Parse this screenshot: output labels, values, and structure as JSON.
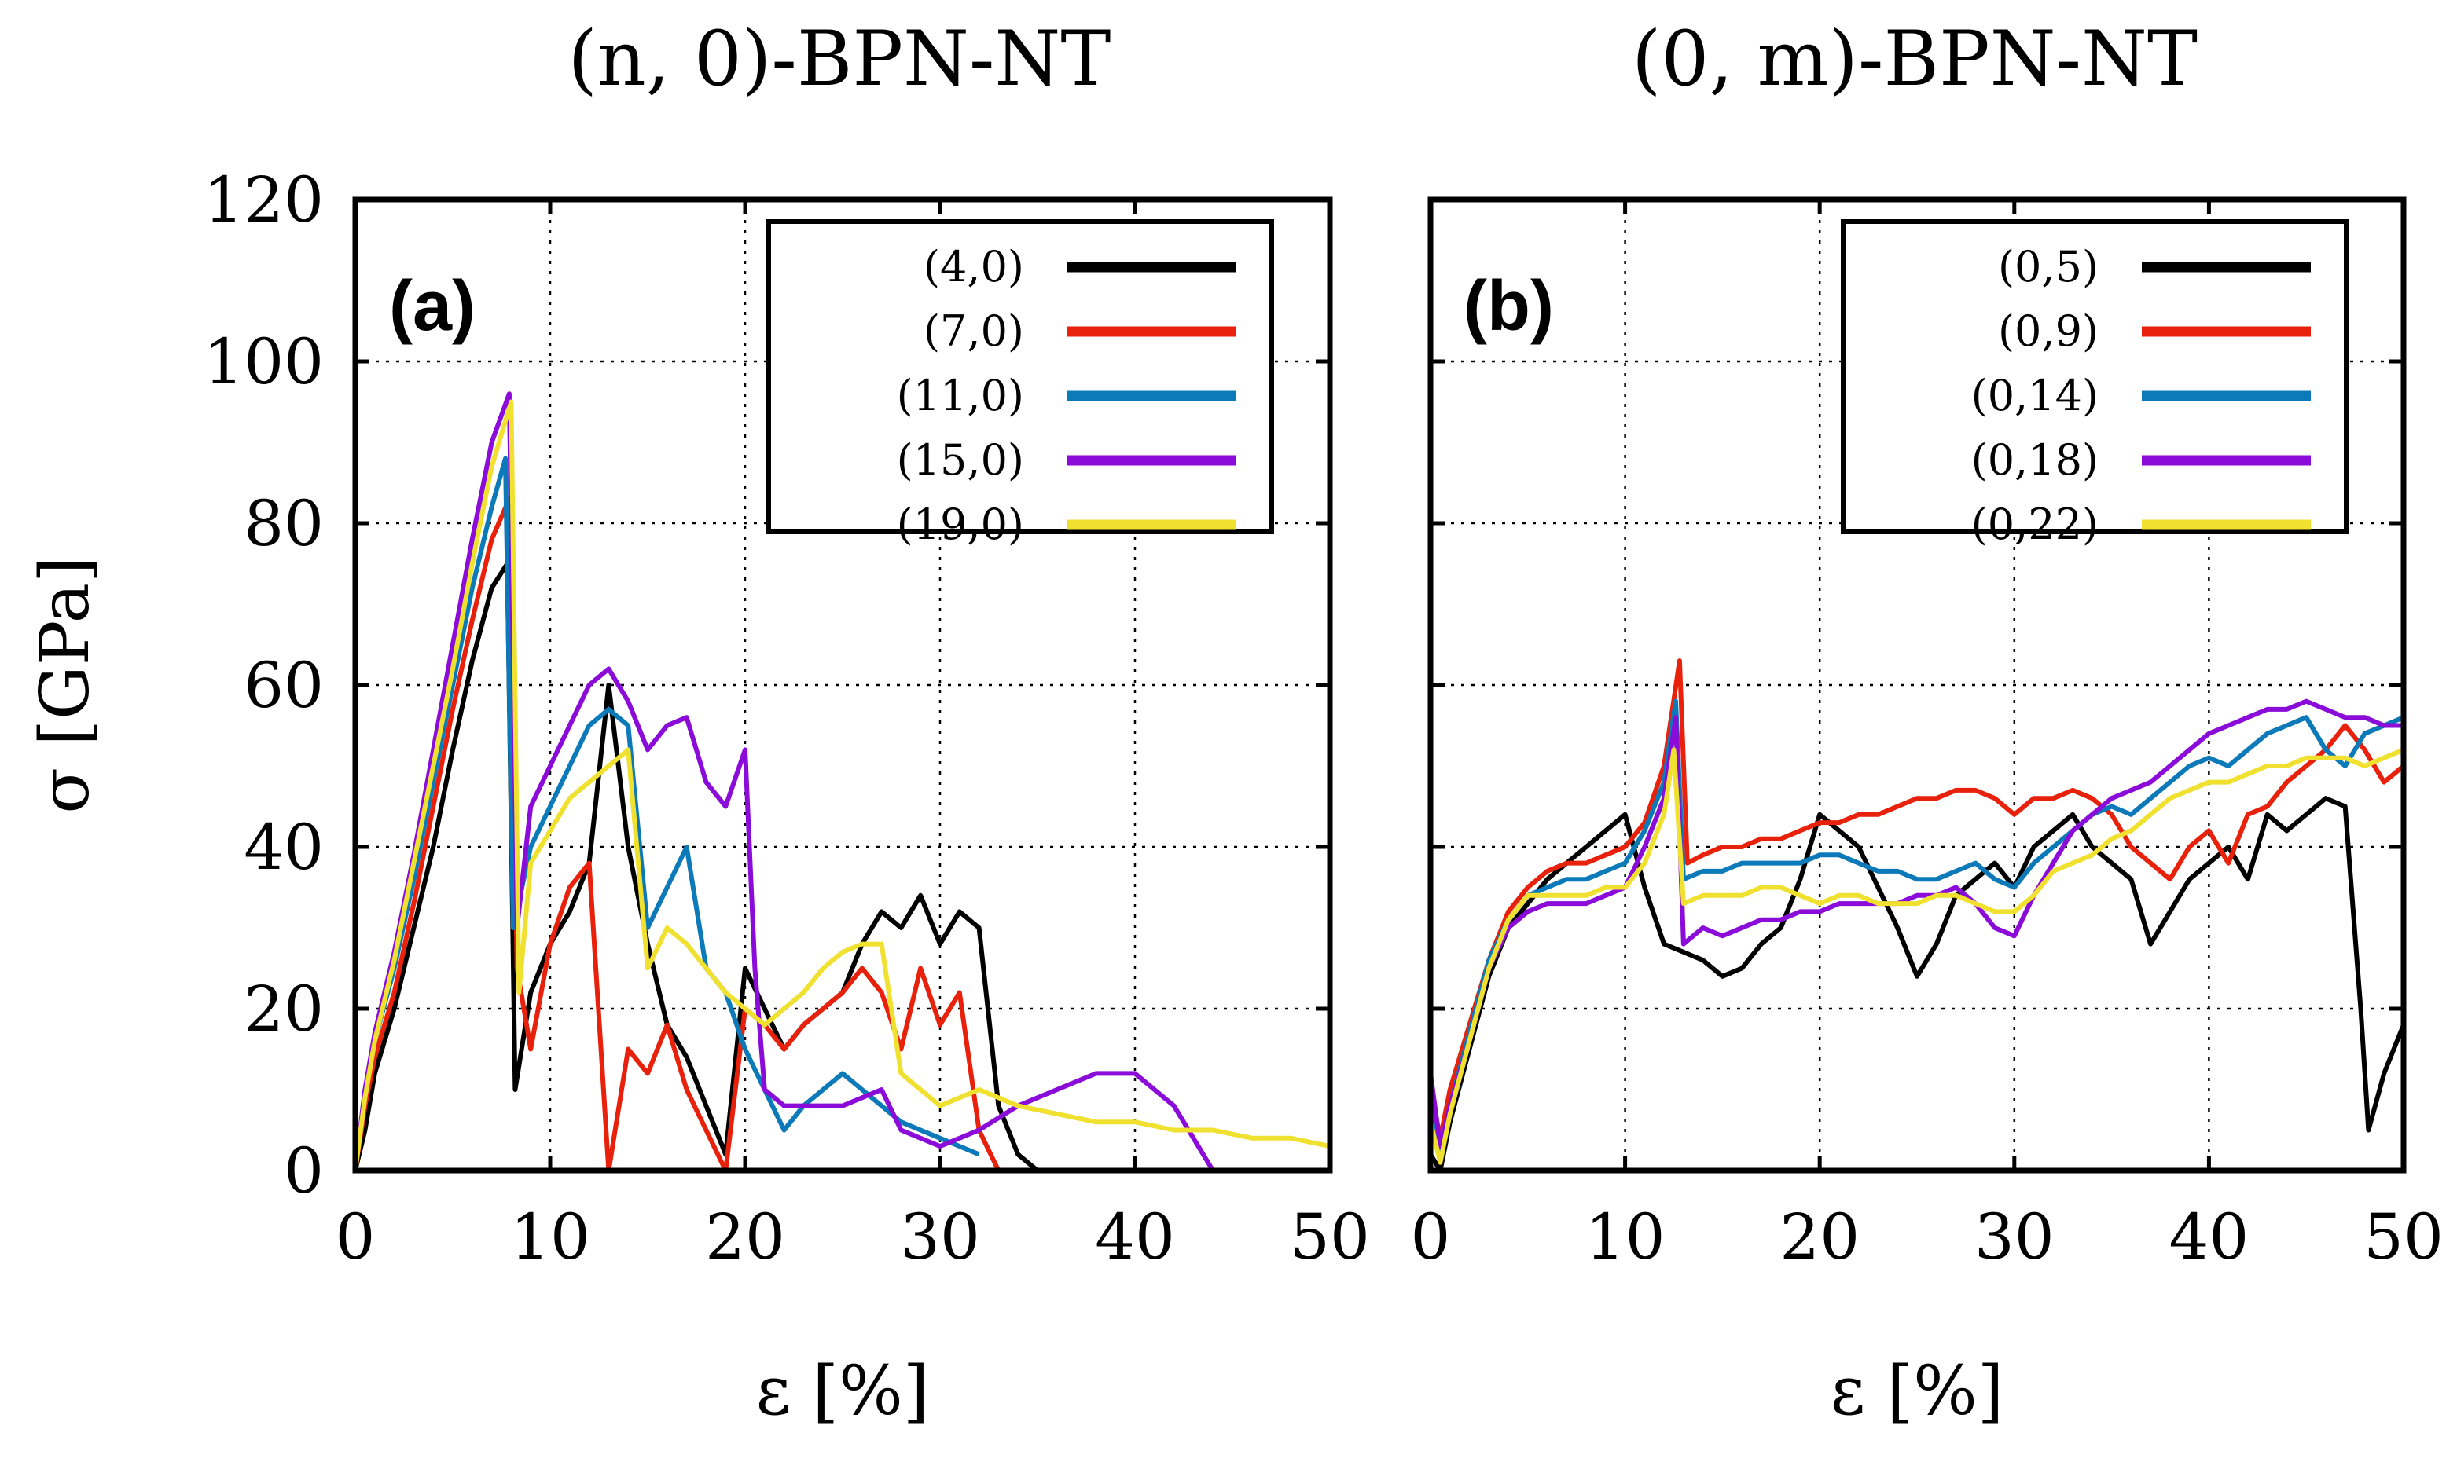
{
  "chart_data": [
    {
      "type": "line",
      "panel_label": "(a)",
      "title": "(n, 0)-BPN-NT",
      "xlabel": "ε [%]",
      "ylabel": "σ [GPa]",
      "xlim": [
        0,
        50
      ],
      "ylim": [
        0,
        120
      ],
      "xticks": [
        "0",
        "10",
        "20",
        "30",
        "40",
        "50"
      ],
      "yticks": [
        "0",
        "20",
        "40",
        "60",
        "80",
        "100",
        "120"
      ],
      "grid": true,
      "legend_position": "top-right",
      "series": [
        {
          "name": "(4,0)",
          "color": "#000000",
          "x": [
            0,
            0.5,
            1,
            2,
            3,
            4,
            5,
            6,
            7,
            7.8,
            8.2,
            9,
            10,
            11,
            12,
            13,
            14,
            15,
            16,
            17,
            18,
            19,
            20,
            21,
            22,
            23,
            24,
            25,
            26,
            27,
            28,
            29,
            30,
            31,
            32,
            33,
            34,
            35,
            36
          ],
          "y": [
            0,
            5,
            12,
            20,
            30,
            40,
            52,
            63,
            72,
            75,
            10,
            22,
            28,
            32,
            38,
            60,
            40,
            28,
            18,
            14,
            8,
            2,
            25,
            20,
            15,
            18,
            20,
            22,
            28,
            32,
            30,
            34,
            28,
            32,
            30,
            8,
            2,
            0,
            0
          ]
        },
        {
          "name": "(7,0)",
          "color": "#e8210c",
          "x": [
            0,
            0.5,
            1,
            2,
            3,
            4,
            5,
            6,
            7,
            7.9,
            8.3,
            9,
            10,
            11,
            12,
            13,
            14,
            15,
            16,
            17,
            18,
            19,
            20,
            21,
            22,
            23,
            24,
            25,
            26,
            27,
            28,
            29,
            30,
            31,
            32,
            33
          ],
          "y": [
            0,
            8,
            14,
            22,
            33,
            45,
            57,
            68,
            78,
            83,
            25,
            15,
            28,
            35,
            38,
            0,
            15,
            12,
            18,
            10,
            5,
            0,
            20,
            18,
            15,
            18,
            20,
            22,
            25,
            22,
            15,
            25,
            18,
            22,
            5,
            0
          ]
        },
        {
          "name": "(11,0)",
          "color": "#0c7ab8",
          "x": [
            0,
            0.5,
            1,
            2,
            3,
            4,
            5,
            6,
            7,
            7.7,
            8.1,
            9,
            10,
            11,
            12,
            13,
            14,
            15,
            16,
            17,
            18,
            19,
            20,
            21,
            22,
            23,
            24,
            25,
            26,
            27,
            28,
            29,
            30,
            31,
            32
          ],
          "y": [
            0,
            10,
            16,
            25,
            36,
            48,
            60,
            72,
            82,
            88,
            30,
            40,
            45,
            50,
            55,
            57,
            55,
            30,
            35,
            40,
            25,
            22,
            15,
            10,
            5,
            8,
            10,
            12,
            10,
            8,
            6,
            5,
            4,
            3,
            2
          ]
        },
        {
          "name": "(15,0)",
          "color": "#8b0bd9",
          "x": [
            0,
            0.5,
            1,
            2,
            3,
            4,
            5,
            6,
            7,
            7.9,
            8.3,
            9,
            10,
            11,
            12,
            13,
            14,
            15,
            16,
            17,
            18,
            19,
            20,
            20.5,
            21,
            22,
            25,
            27,
            28,
            30,
            32,
            34,
            36,
            38,
            40,
            42,
            44
          ],
          "y": [
            0,
            10,
            17,
            27,
            39,
            52,
            65,
            78,
            90,
            96,
            30,
            45,
            50,
            55,
            60,
            62,
            58,
            52,
            55,
            56,
            48,
            45,
            52,
            25,
            10,
            8,
            8,
            10,
            5,
            3,
            5,
            8,
            10,
            12,
            12,
            8,
            0
          ]
        },
        {
          "name": "(19,0)",
          "color": "#f0e130",
          "x": [
            0,
            0.5,
            1,
            2,
            3,
            4,
            5,
            6,
            7,
            8,
            8.4,
            9,
            10,
            11,
            12,
            13,
            14,
            15,
            16,
            17,
            18,
            19,
            20,
            21,
            22,
            23,
            24,
            25,
            26,
            27,
            28,
            29,
            30,
            32,
            34,
            36,
            38,
            40,
            42,
            44,
            46,
            48,
            50
          ],
          "y": [
            0,
            9,
            16,
            26,
            38,
            50,
            62,
            75,
            87,
            95,
            22,
            38,
            42,
            46,
            48,
            50,
            52,
            25,
            30,
            28,
            25,
            22,
            20,
            18,
            20,
            22,
            25,
            27,
            28,
            28,
            12,
            10,
            8,
            10,
            8,
            7,
            6,
            6,
            5,
            5,
            4,
            4,
            3
          ]
        }
      ]
    },
    {
      "type": "line",
      "panel_label": "(b)",
      "title": "(0, m)-BPN-NT",
      "xlabel": "ε [%]",
      "ylabel": "",
      "xlim": [
        0,
        50
      ],
      "ylim": [
        0,
        120
      ],
      "xticks": [
        "0",
        "10",
        "20",
        "30",
        "40",
        "50"
      ],
      "yticks": [],
      "grid": true,
      "legend_position": "top-right",
      "series": [
        {
          "name": "(0,5)",
          "color": "#000000",
          "x": [
            0,
            0.5,
            1,
            2,
            3,
            4,
            5,
            6,
            7,
            8,
            9,
            10,
            11,
            12,
            13,
            14,
            15,
            16,
            17,
            18,
            19,
            20,
            21,
            22,
            23,
            24,
            25,
            26,
            27,
            28,
            29,
            30,
            31,
            32,
            33,
            34,
            35,
            36,
            37,
            38,
            39,
            40,
            41,
            42,
            43,
            44,
            45,
            46,
            47,
            47.8,
            48.2,
            49,
            50
          ],
          "y": [
            2,
            0,
            6,
            15,
            24,
            30,
            33,
            36,
            38,
            40,
            42,
            44,
            35,
            28,
            27,
            26,
            24,
            25,
            28,
            30,
            36,
            44,
            42,
            40,
            35,
            30,
            24,
            28,
            34,
            36,
            38,
            35,
            40,
            42,
            44,
            40,
            38,
            36,
            28,
            32,
            36,
            38,
            40,
            36,
            44,
            42,
            44,
            46,
            45,
            20,
            5,
            12,
            18
          ]
        },
        {
          "name": "(0,9)",
          "color": "#e8210c",
          "x": [
            0,
            0.5,
            1,
            2,
            3,
            4,
            5,
            6,
            7,
            8,
            9,
            10,
            11,
            12,
            12.8,
            13.2,
            14,
            15,
            16,
            17,
            18,
            19,
            20,
            21,
            22,
            23,
            24,
            25,
            26,
            27,
            28,
            29,
            30,
            31,
            32,
            33,
            34,
            35,
            36,
            37,
            38,
            39,
            40,
            41,
            42,
            43,
            44,
            45,
            46,
            47,
            48,
            49,
            50
          ],
          "y": [
            10,
            4,
            10,
            18,
            26,
            32,
            35,
            37,
            38,
            38,
            39,
            40,
            43,
            50,
            63,
            38,
            39,
            40,
            40,
            41,
            41,
            42,
            43,
            43,
            44,
            44,
            45,
            46,
            46,
            47,
            47,
            46,
            44,
            46,
            46,
            47,
            46,
            44,
            40,
            38,
            36,
            40,
            42,
            38,
            44,
            45,
            48,
            50,
            52,
            55,
            52,
            48,
            50
          ]
        },
        {
          "name": "(0,14)",
          "color": "#0c7ab8",
          "x": [
            0,
            0.5,
            1,
            2,
            3,
            4,
            5,
            6,
            7,
            8,
            9,
            10,
            11,
            12,
            12.6,
            13,
            14,
            15,
            16,
            17,
            18,
            19,
            20,
            21,
            22,
            23,
            24,
            25,
            26,
            27,
            28,
            29,
            30,
            31,
            32,
            33,
            34,
            35,
            36,
            37,
            38,
            39,
            40,
            41,
            42,
            43,
            44,
            45,
            46,
            47,
            48,
            49,
            50
          ],
          "y": [
            8,
            2,
            8,
            17,
            26,
            31,
            34,
            35,
            36,
            36,
            37,
            38,
            42,
            48,
            58,
            36,
            37,
            37,
            38,
            38,
            38,
            38,
            39,
            39,
            38,
            37,
            37,
            36,
            36,
            37,
            38,
            36,
            35,
            38,
            40,
            42,
            44,
            45,
            44,
            46,
            48,
            50,
            51,
            50,
            52,
            54,
            55,
            56,
            52,
            50,
            54,
            55,
            56
          ]
        },
        {
          "name": "(0,18)",
          "color": "#8b0bd9",
          "x": [
            0,
            0.5,
            1,
            2,
            3,
            4,
            5,
            6,
            7,
            8,
            9,
            10,
            11,
            12,
            12.6,
            13,
            14,
            15,
            16,
            17,
            18,
            19,
            20,
            21,
            22,
            23,
            24,
            25,
            26,
            27,
            28,
            29,
            30,
            31,
            32,
            33,
            34,
            35,
            36,
            37,
            38,
            39,
            40,
            41,
            42,
            43,
            44,
            45,
            46,
            47,
            48,
            49,
            50
          ],
          "y": [
            12,
            3,
            8,
            16,
            25,
            30,
            32,
            33,
            33,
            33,
            34,
            35,
            40,
            46,
            56,
            28,
            30,
            29,
            30,
            31,
            31,
            32,
            32,
            33,
            33,
            33,
            33,
            34,
            34,
            35,
            33,
            30,
            29,
            34,
            38,
            42,
            44,
            46,
            47,
            48,
            50,
            52,
            54,
            55,
            56,
            57,
            57,
            58,
            57,
            56,
            56,
            55,
            55
          ]
        },
        {
          "name": "(0,22)",
          "color": "#f0e130",
          "x": [
            0,
            0.5,
            1,
            2,
            3,
            4,
            5,
            6,
            7,
            8,
            9,
            10,
            11,
            12,
            12.5,
            13,
            14,
            15,
            16,
            17,
            18,
            19,
            20,
            21,
            22,
            23,
            24,
            25,
            26,
            27,
            28,
            29,
            30,
            31,
            32,
            33,
            34,
            35,
            36,
            37,
            38,
            39,
            40,
            41,
            42,
            43,
            44,
            45,
            46,
            47,
            48,
            49,
            50
          ],
          "y": [
            6,
            1,
            7,
            16,
            25,
            31,
            34,
            34,
            34,
            34,
            35,
            35,
            38,
            44,
            52,
            33,
            34,
            34,
            34,
            35,
            35,
            34,
            33,
            34,
            34,
            33,
            33,
            33,
            34,
            34,
            33,
            32,
            32,
            34,
            37,
            38,
            39,
            41,
            42,
            44,
            46,
            47,
            48,
            48,
            49,
            50,
            50,
            51,
            51,
            51,
            50,
            51,
            52
          ]
        }
      ]
    }
  ]
}
